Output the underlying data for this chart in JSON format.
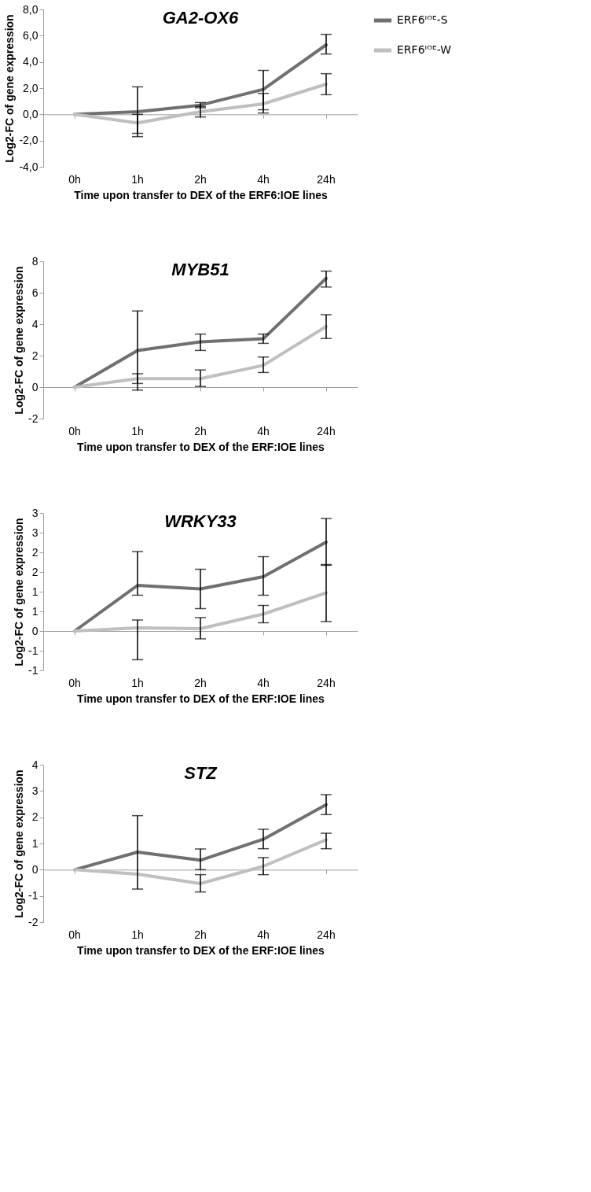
{
  "chart_data": [
    {
      "type": "line",
      "title": "GA2-OX6",
      "xlabel": "Time upon transfer to DEX of the ERF6:IOE lines",
      "ylabel": "Log2-FC of gene expression",
      "categories": [
        "0h",
        "1h",
        "2h",
        "4h",
        "24h"
      ],
      "ylim": [
        -4,
        8
      ],
      "yticks": [
        {
          "value": -4,
          "label": "-4,0"
        },
        {
          "value": -2,
          "label": "-2,0"
        },
        {
          "value": 0,
          "label": "0,0"
        },
        {
          "value": 2,
          "label": "2,0"
        },
        {
          "value": 4,
          "label": "4,0"
        },
        {
          "value": 6,
          "label": "6,0"
        },
        {
          "value": 8,
          "label": "8,0"
        }
      ],
      "legend": "right",
      "series": [
        {
          "name": "ERF6ᴵᴼᴱ-S",
          "color": "#707070",
          "values": [
            0,
            0.2,
            0.7,
            1.9,
            5.3
          ],
          "errors": [
            null,
            [
              -1.7,
              2.1
            ],
            [
              0.5,
              0.9
            ],
            [
              0.35,
              3.35
            ],
            [
              4.6,
              6.1
            ]
          ]
        },
        {
          "name": "ERF6ᴵᴼᴱ-W",
          "color": "#bfbfbf",
          "values": [
            0,
            -0.65,
            0.2,
            0.8,
            2.3
          ],
          "errors": [
            null,
            [
              -1.45,
              0.0
            ],
            [
              -0.2,
              0.6
            ],
            [
              0.1,
              1.6
            ],
            [
              1.5,
              3.1
            ]
          ]
        }
      ]
    },
    {
      "type": "line",
      "title": "MYB51",
      "xlabel": "Time upon transfer to DEX of the ERF:IOE lines",
      "ylabel": "Log2-FC of gene expression",
      "categories": [
        "0h",
        "1h",
        "2h",
        "4h",
        "24h"
      ],
      "ylim": [
        -2,
        8
      ],
      "yticks": [
        -2,
        0,
        2,
        4,
        6,
        8
      ],
      "legend": "right",
      "series": [
        {
          "name": "ERF6ᴵᴼᴱ-S",
          "color": "#707070",
          "values": [
            0,
            2.32,
            2.88,
            3.07,
            6.91
          ],
          "errors": [
            null,
            [
              -0.19,
              4.84
            ],
            [
              2.33,
              3.37
            ],
            [
              2.78,
              3.37
            ],
            [
              6.36,
              7.37
            ]
          ]
        },
        {
          "name": "ERF6ᴵᴼᴱ-W",
          "color": "#bfbfbf",
          "values": [
            0,
            0.54,
            0.54,
            1.38,
            3.85
          ],
          "errors": [
            null,
            [
              0.23,
              0.85
            ],
            [
              0.04,
              1.09
            ],
            [
              0.93,
              1.91
            ],
            [
              3.09,
              4.6
            ]
          ]
        }
      ]
    },
    {
      "type": "line",
      "title": "WRKY33",
      "xlabel": "Time upon transfer to DEX of the ERF:IOE lines",
      "ylabel": "Log2-FC of gene expression",
      "categories": [
        "0h",
        "1h",
        "2h",
        "4h",
        "24h"
      ],
      "ylim": [
        -1,
        3
      ],
      "yticks": [
        {
          "value": -1,
          "label": "-1"
        },
        {
          "value": -0.5,
          "label": "-1"
        },
        0,
        {
          "value": 0.5,
          "label": "1"
        },
        1,
        {
          "value": 1.5,
          "label": "2"
        },
        2,
        {
          "value": 2.5,
          "label": "3"
        },
        3
      ],
      "legend": "right",
      "series": [
        {
          "name": "ERF6ᴵᴼᴱ-S",
          "color": "#707070",
          "values": [
            0,
            1.16,
            1.07,
            1.38,
            2.26
          ],
          "errors": [
            null,
            [
              0.91,
              2.02
            ],
            [
              0.57,
              1.57
            ],
            [
              0.91,
              1.89
            ],
            [
              1.67,
              2.86
            ]
          ]
        },
        {
          "name": "ERF6ᴵᴼᴱ-W",
          "color": "#bfbfbf",
          "values": [
            0,
            0.08,
            0.06,
            0.43,
            0.97
          ],
          "errors": [
            null,
            [
              -0.73,
              0.28
            ],
            [
              -0.2,
              0.34
            ],
            [
              0.21,
              0.65
            ],
            [
              0.24,
              1.69
            ]
          ]
        }
      ]
    },
    {
      "type": "line",
      "title": "STZ",
      "xlabel": "Time upon transfer to DEX of the ERF:IOE lines",
      "ylabel": "Log2-FC of gene expression",
      "categories": [
        "0h",
        "1h",
        "2h",
        "4h",
        "24h"
      ],
      "ylim": [
        -2,
        4
      ],
      "yticks": [
        -2,
        -1,
        0,
        1,
        2,
        3,
        4
      ],
      "legend": "right",
      "series": [
        {
          "name": "ERF6ᴵᴼᴱ-S",
          "color": "#707070",
          "values": [
            0,
            0.67,
            0.36,
            1.16,
            2.48
          ],
          "errors": [
            null,
            [
              -0.74,
              2.06
            ],
            [
              0.0,
              0.79
            ],
            [
              0.8,
              1.54
            ],
            [
              2.1,
              2.86
            ]
          ]
        },
        {
          "name": "ERF6ᴵᴼᴱ-W",
          "color": "#bfbfbf",
          "values": [
            0,
            -0.17,
            -0.53,
            0.13,
            1.14
          ],
          "errors": [
            null,
            null,
            [
              -0.85,
              -0.19
            ],
            [
              -0.19,
              0.46
            ],
            [
              0.8,
              1.39
            ]
          ]
        }
      ]
    }
  ]
}
